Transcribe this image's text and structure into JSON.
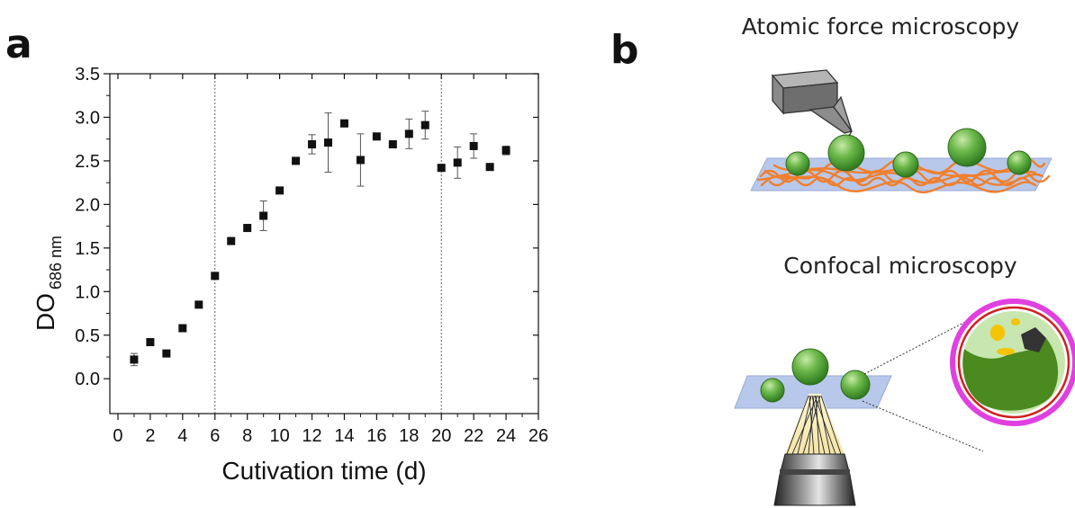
{
  "panels": {
    "a": {
      "letter": "a"
    },
    "b": {
      "letter": "b",
      "afm_title": "Atomic force microscopy",
      "confocal_title": "Confocal microscopy"
    }
  },
  "colors": {
    "marker": "#111111",
    "guide_line": "#666666",
    "cell_green": "#5aa83a",
    "substrate": "#b8c8ea",
    "fibers": "#f07f2e",
    "cell_membrane": "#e040e0",
    "cell_wall": "#d02020"
  },
  "chart_data": {
    "type": "scatter",
    "title": "",
    "xlabel": "Cutivation time (d)",
    "ylabel": "DO",
    "ylabel_subscript": "686 nm",
    "xlim": [
      -0.5,
      26
    ],
    "ylim": [
      -0.4,
      3.5
    ],
    "xticks": [
      0,
      2,
      4,
      6,
      8,
      10,
      12,
      14,
      16,
      18,
      20,
      22,
      24,
      26
    ],
    "yticks": [
      0.0,
      0.5,
      1.0,
      1.5,
      2.0,
      2.5,
      3.0,
      3.5
    ],
    "ytick_labels": [
      "0.0",
      "0.5",
      "1.0",
      "1.5",
      "2.0",
      "2.5",
      "3.0",
      "3.5"
    ],
    "marker": "square",
    "grid": false,
    "vertical_guides": [
      6,
      20
    ],
    "series": [
      {
        "x": [
          1,
          2,
          3,
          4,
          5,
          6,
          7,
          8,
          9,
          10,
          11,
          12,
          13,
          14,
          15,
          16,
          17,
          18,
          19,
          20,
          21,
          22,
          23,
          24
        ],
        "y": [
          0.22,
          0.42,
          0.29,
          0.58,
          0.85,
          1.18,
          1.58,
          1.73,
          1.87,
          2.16,
          2.5,
          2.69,
          2.71,
          2.93,
          2.51,
          2.78,
          2.69,
          2.81,
          2.91,
          2.42,
          2.48,
          2.67,
          2.43,
          2.62
        ],
        "error": [
          0.07,
          0.02,
          0.02,
          0.02,
          0.02,
          0.02,
          0.02,
          0.04,
          0.17,
          0.03,
          0.03,
          0.11,
          0.34,
          0.04,
          0.3,
          0.02,
          0.02,
          0.17,
          0.16,
          0.02,
          0.18,
          0.14,
          0.02,
          0.05
        ]
      }
    ]
  }
}
